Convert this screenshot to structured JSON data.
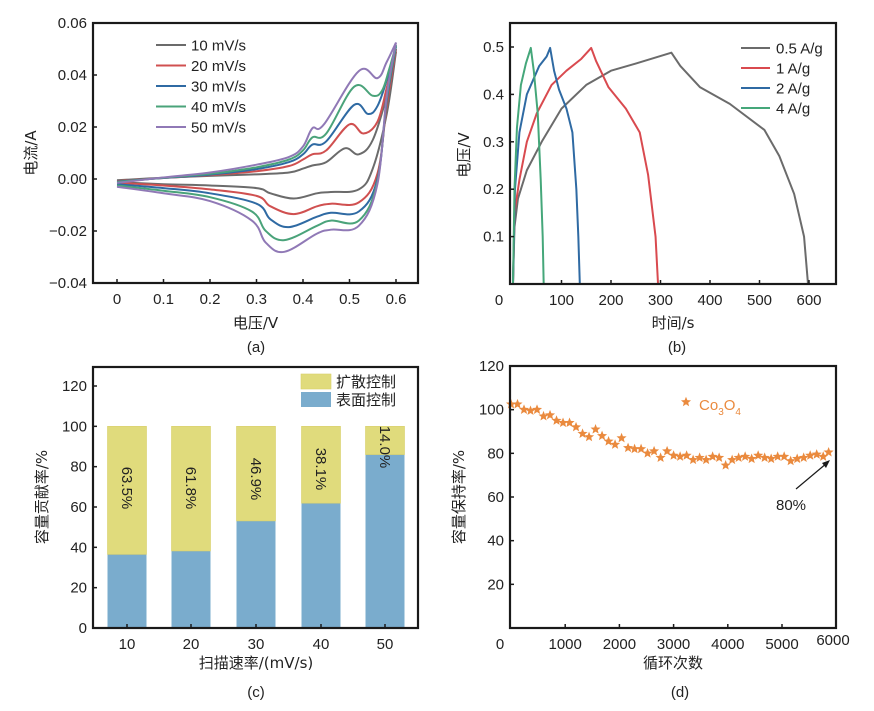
{
  "chart_data": [
    {
      "id": "a",
      "type": "line",
      "panel_label": "(a)",
      "title": "",
      "xlabel": "电压/V",
      "ylabel": "电流/A",
      "xlim": [
        -0.05,
        0.65
      ],
      "ylim": [
        -0.04,
        0.06
      ],
      "xticks": [
        0,
        0.1,
        0.2,
        0.3,
        0.4,
        0.5,
        0.6
      ],
      "xtick_labels": [
        "0",
        "0.1",
        "0.2",
        "0.3",
        "0.4",
        "0.5",
        "0.6"
      ],
      "yticks": [
        -0.04,
        -0.02,
        0.0,
        0.02,
        0.04,
        0.06
      ],
      "ytick_labels": [
        "−0.04",
        "−0.02",
        "0.00",
        "0.02",
        "0.04",
        "0.06"
      ],
      "legend_position": "top-left",
      "series": [
        {
          "name": "10 mV/s",
          "color": "#6b6b6b",
          "anodic": [
            [
              0,
              -0.0005
            ],
            [
              0.1,
              0.0005
            ],
            [
              0.2,
              0.0012
            ],
            [
              0.3,
              0.0018
            ],
            [
              0.37,
              0.0025
            ],
            [
              0.4,
              0.004
            ],
            [
              0.42,
              0.0052
            ],
            [
              0.45,
              0.0065
            ],
            [
              0.49,
              0.0118
            ],
            [
              0.52,
              0.0095
            ],
            [
              0.55,
              0.015
            ],
            [
              0.58,
              0.032
            ],
            [
              0.6,
              0.049
            ]
          ],
          "cathodic": [
            [
              0.6,
              0.049
            ],
            [
              0.58,
              0.025
            ],
            [
              0.55,
              0.004
            ],
            [
              0.52,
              -0.004
            ],
            [
              0.46,
              -0.005
            ],
            [
              0.43,
              -0.0055
            ],
            [
              0.38,
              -0.0075
            ],
            [
              0.33,
              -0.0055
            ],
            [
              0.3,
              -0.0035
            ],
            [
              0.2,
              -0.0025
            ],
            [
              0.1,
              -0.002
            ],
            [
              0,
              -0.0012
            ]
          ]
        },
        {
          "name": "20 mV/s",
          "color": "#d05050",
          "anodic": [
            [
              0,
              -0.0008
            ],
            [
              0.1,
              0.0004
            ],
            [
              0.2,
              0.0015
            ],
            [
              0.3,
              0.003
            ],
            [
              0.37,
              0.005
            ],
            [
              0.4,
              0.0075
            ],
            [
              0.42,
              0.0095
            ],
            [
              0.45,
              0.011
            ],
            [
              0.5,
              0.021
            ],
            [
              0.53,
              0.0175
            ],
            [
              0.56,
              0.022
            ],
            [
              0.58,
              0.035
            ],
            [
              0.6,
              0.05
            ]
          ],
          "cathodic": [
            [
              0.6,
              0.05
            ],
            [
              0.58,
              0.028
            ],
            [
              0.56,
              0.002
            ],
            [
              0.52,
              -0.009
            ],
            [
              0.46,
              -0.0095
            ],
            [
              0.43,
              -0.0105
            ],
            [
              0.38,
              -0.0135
            ],
            [
              0.33,
              -0.0105
            ],
            [
              0.3,
              -0.0065
            ],
            [
              0.2,
              -0.004
            ],
            [
              0.1,
              -0.0025
            ],
            [
              0,
              -0.0015
            ]
          ]
        },
        {
          "name": "30 mV/s",
          "color": "#2f6aa3",
          "anodic": [
            [
              0,
              -0.001
            ],
            [
              0.1,
              0.0004
            ],
            [
              0.2,
              0.0017
            ],
            [
              0.3,
              0.0038
            ],
            [
              0.37,
              0.0065
            ],
            [
              0.4,
              0.0095
            ],
            [
              0.42,
              0.0132
            ],
            [
              0.45,
              0.0145
            ],
            [
              0.51,
              0.0285
            ],
            [
              0.54,
              0.025
            ],
            [
              0.56,
              0.028
            ],
            [
              0.58,
              0.038
            ],
            [
              0.6,
              0.051
            ]
          ],
          "cathodic": [
            [
              0.6,
              0.051
            ],
            [
              0.58,
              0.03
            ],
            [
              0.56,
              0.0
            ],
            [
              0.52,
              -0.0125
            ],
            [
              0.46,
              -0.013
            ],
            [
              0.43,
              -0.0145
            ],
            [
              0.37,
              -0.0185
            ],
            [
              0.33,
              -0.0155
            ],
            [
              0.3,
              -0.0095
            ],
            [
              0.2,
              -0.0055
            ],
            [
              0.1,
              -0.0035
            ],
            [
              0,
              -0.002
            ]
          ]
        },
        {
          "name": "40 mV/s",
          "color": "#4aa37a",
          "anodic": [
            [
              0,
              -0.0012
            ],
            [
              0.1,
              0.0005
            ],
            [
              0.2,
              0.002
            ],
            [
              0.3,
              0.0045
            ],
            [
              0.37,
              0.0075
            ],
            [
              0.4,
              0.011
            ],
            [
              0.42,
              0.016
            ],
            [
              0.45,
              0.0175
            ],
            [
              0.51,
              0.0355
            ],
            [
              0.55,
              0.032
            ],
            [
              0.57,
              0.034
            ],
            [
              0.585,
              0.042
            ],
            [
              0.6,
              0.0515
            ]
          ],
          "cathodic": [
            [
              0.6,
              0.0515
            ],
            [
              0.58,
              0.031
            ],
            [
              0.56,
              -0.001
            ],
            [
              0.52,
              -0.016
            ],
            [
              0.46,
              -0.016
            ],
            [
              0.43,
              -0.018
            ],
            [
              0.36,
              -0.0235
            ],
            [
              0.32,
              -0.02
            ],
            [
              0.29,
              -0.0125
            ],
            [
              0.2,
              -0.007
            ],
            [
              0.1,
              -0.0045
            ],
            [
              0,
              -0.0025
            ]
          ]
        },
        {
          "name": "50 mV/s",
          "color": "#9079b6",
          "anodic": [
            [
              0,
              -0.0015
            ],
            [
              0.1,
              0.0006
            ],
            [
              0.2,
              0.0025
            ],
            [
              0.3,
              0.0055
            ],
            [
              0.37,
              0.0085
            ],
            [
              0.4,
              0.0125
            ],
            [
              0.42,
              0.0195
            ],
            [
              0.445,
              0.021
            ],
            [
              0.52,
              0.0415
            ],
            [
              0.56,
              0.0388
            ],
            [
              0.58,
              0.045
            ],
            [
              0.6,
              0.0525
            ]
          ],
          "cathodic": [
            [
              0.6,
              0.0525
            ],
            [
              0.58,
              0.032
            ],
            [
              0.56,
              -0.002
            ],
            [
              0.52,
              -0.018
            ],
            [
              0.46,
              -0.0195
            ],
            [
              0.43,
              -0.021
            ],
            [
              0.36,
              -0.028
            ],
            [
              0.32,
              -0.0245
            ],
            [
              0.29,
              -0.016
            ],
            [
              0.2,
              -0.0085
            ],
            [
              0.1,
              -0.0055
            ],
            [
              0,
              -0.003
            ]
          ]
        }
      ]
    },
    {
      "id": "b",
      "type": "line",
      "panel_label": "(b)",
      "title": "",
      "xlabel": "时间/s",
      "ylabel": "电压/V",
      "xlim": [
        0,
        650
      ],
      "ylim": [
        0,
        0.55
      ],
      "xticks": [
        0,
        100,
        200,
        300,
        400,
        500,
        600
      ],
      "xtick_labels": [
        "0",
        "100",
        "200",
        "300",
        "400",
        "500",
        "600"
      ],
      "yticks": [
        0.1,
        0.2,
        0.3,
        0.4,
        0.5
      ],
      "ytick_labels": [
        "0.1",
        "0.2",
        "0.3",
        "0.4",
        "0.5"
      ],
      "legend_position": "top-right",
      "series": [
        {
          "name": "0.5 A/g",
          "color": "#6b6b6b",
          "points": [
            [
              2,
              0
            ],
            [
              5,
              0.12
            ],
            [
              12,
              0.18
            ],
            [
              30,
              0.24
            ],
            [
              60,
              0.3
            ],
            [
              100,
              0.37
            ],
            [
              150,
              0.42
            ],
            [
              200,
              0.45
            ],
            [
              250,
              0.465
            ],
            [
              322,
              0.488
            ],
            [
              340,
              0.46
            ],
            [
              380,
              0.415
            ],
            [
              440,
              0.38
            ],
            [
              510,
              0.325
            ],
            [
              540,
              0.27
            ],
            [
              570,
              0.19
            ],
            [
              590,
              0.1
            ],
            [
              598,
              0
            ]
          ]
        },
        {
          "name": "1 A/g",
          "color": "#d94a4f",
          "points": [
            [
              2,
              0
            ],
            [
              5,
              0.15
            ],
            [
              15,
              0.22
            ],
            [
              30,
              0.3
            ],
            [
              50,
              0.36
            ],
            [
              80,
              0.42
            ],
            [
              110,
              0.45
            ],
            [
              140,
              0.475
            ],
            [
              160,
              0.498
            ],
            [
              170,
              0.47
            ],
            [
              195,
              0.415
            ],
            [
              230,
              0.37
            ],
            [
              258,
              0.32
            ],
            [
              275,
              0.23
            ],
            [
              290,
              0.1
            ],
            [
              295,
              0
            ]
          ]
        },
        {
          "name": "2 A/g",
          "color": "#2f6aa3",
          "points": [
            [
              2,
              0
            ],
            [
              6,
              0.2
            ],
            [
              15,
              0.32
            ],
            [
              30,
              0.4
            ],
            [
              55,
              0.46
            ],
            [
              70,
              0.48
            ],
            [
              77,
              0.498
            ],
            [
              85,
              0.45
            ],
            [
              95,
              0.41
            ],
            [
              110,
              0.37
            ],
            [
              122,
              0.32
            ],
            [
              130,
              0.2
            ],
            [
              134,
              0.1
            ],
            [
              137,
              0
            ]
          ]
        },
        {
          "name": "4 A/g",
          "color": "#45a77a",
          "points": [
            [
              2,
              0
            ],
            [
              5,
              0.2
            ],
            [
              10,
              0.33
            ],
            [
              18,
              0.42
            ],
            [
              28,
              0.465
            ],
            [
              38,
              0.498
            ],
            [
              44,
              0.45
            ],
            [
              52,
              0.36
            ],
            [
              58,
              0.22
            ],
            [
              62,
              0.1
            ],
            [
              64,
              0
            ]
          ]
        }
      ]
    },
    {
      "id": "c",
      "type": "bar",
      "stacked": true,
      "panel_label": "(c)",
      "title": "",
      "xlabel": "扫描速率/(mV/s)",
      "ylabel": "容量贡献率/%",
      "categories": [
        "10",
        "20",
        "30",
        "40",
        "50"
      ],
      "ylim": [
        0,
        130
      ],
      "yticks": [
        0,
        20,
        40,
        60,
        80,
        100,
        120
      ],
      "ytick_labels": [
        "0",
        "20",
        "40",
        "60",
        "80",
        "100",
        "120"
      ],
      "legend_position": "top-right",
      "series": [
        {
          "name": "表面控制",
          "color": "#7aaccd",
          "values": [
            36.5,
            38.2,
            53.1,
            61.9,
            86.0
          ]
        },
        {
          "name": "扩散控制",
          "color": "#e0db7c",
          "values": [
            63.5,
            61.8,
            46.9,
            38.1,
            14.0
          ]
        }
      ],
      "data_labels": [
        "63.5%",
        "61.8%",
        "46.9%",
        "38.1%",
        "14.0%"
      ]
    },
    {
      "id": "d",
      "type": "scatter",
      "panel_label": "(d)",
      "title": "",
      "xlabel": "循环次数",
      "ylabel": "容量保持率/%",
      "xlim": [
        0,
        6000
      ],
      "ylim": [
        0,
        120
      ],
      "xticks": [
        0,
        1000,
        2000,
        3000,
        4000,
        5000,
        6000
      ],
      "xtick_labels": [
        "0",
        "1000",
        "2000",
        "3000",
        "4000",
        "5000",
        "6000"
      ],
      "yticks": [
        20,
        40,
        60,
        80,
        100,
        120
      ],
      "ytick_labels": [
        "20",
        "40",
        "60",
        "80",
        "100",
        "120"
      ],
      "legend_position": "top-center",
      "annotation": "80%",
      "series": [
        {
          "name": "Co₃O₄",
          "legend_main": "Co",
          "legend_sub1": "3",
          "legend_mid": "O",
          "legend_sub2": "4",
          "color": "#ea8a3e",
          "marker": "star",
          "x": [
            0,
            120,
            240,
            360,
            480,
            600,
            720,
            840,
            960,
            1080,
            1200,
            1320,
            1440,
            1560,
            1680,
            1800,
            1920,
            2040,
            2160,
            2280,
            2400,
            2520,
            2640,
            2760,
            2880,
            3000,
            3120,
            3240,
            3360,
            3480,
            3600,
            3720,
            3840,
            3960,
            4080,
            4200,
            4320,
            4440,
            4560,
            4680,
            4800,
            4920,
            5040,
            5160,
            5280,
            5400,
            5520,
            5640,
            5760,
            5860
          ],
          "y": [
            102.5,
            102.5,
            100,
            99.5,
            100,
            97,
            97.5,
            95,
            94,
            94,
            92,
            89,
            87.5,
            91,
            88,
            85.5,
            84,
            87,
            82.5,
            82,
            82,
            80,
            81,
            78,
            81,
            79,
            78.5,
            79,
            77,
            78,
            77,
            78.5,
            78,
            74.5,
            77,
            78,
            78.5,
            77.5,
            79,
            78,
            77.5,
            78.5,
            78.5,
            76.5,
            77.5,
            78,
            79,
            79.5,
            78.5,
            80.5
          ]
        }
      ]
    }
  ]
}
